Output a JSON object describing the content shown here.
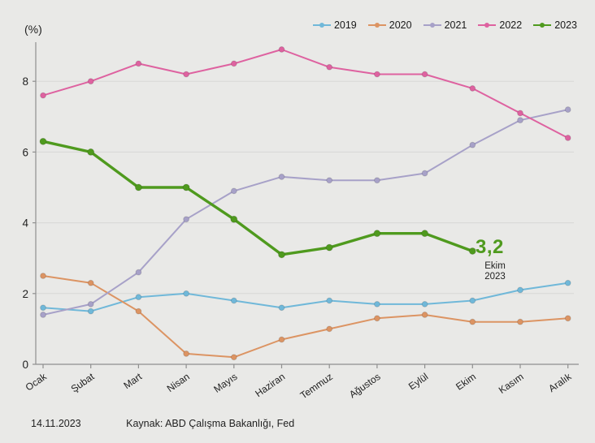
{
  "chart": {
    "unit_label": "(%)",
    "annotation": {
      "value": "3,2",
      "line1": "Ekim",
      "line2": "2023"
    },
    "footer": {
      "date": "14.11.2023",
      "source": "Kaynak: ABD Çalışma Bakanlığı, Fed"
    },
    "colors": {
      "background": "#e9e9e7",
      "grid": "#d7d7d6",
      "axis": "#8f8f8f",
      "text": "#222222",
      "annotation_value": "#4f9a1e"
    }
  },
  "chart_data": {
    "type": "line",
    "title": "",
    "xlabel": "",
    "ylabel": "(%)",
    "categories": [
      "Ocak",
      "Şubat",
      "Mart",
      "Nisan",
      "Mayıs",
      "Haziran",
      "Temmuz",
      "Ağustos",
      "Eylül",
      "Ekim",
      "Kasım",
      "Aralık"
    ],
    "series": [
      {
        "name": "2019",
        "color": "#70b8d9",
        "line_width": 2,
        "values": [
          1.6,
          1.5,
          1.9,
          2.0,
          1.8,
          1.6,
          1.8,
          1.7,
          1.7,
          1.8,
          2.1,
          2.3
        ]
      },
      {
        "name": "2020",
        "color": "#dc9463",
        "line_width": 2,
        "values": [
          2.5,
          2.3,
          1.5,
          0.3,
          0.2,
          0.7,
          1.0,
          1.3,
          1.4,
          1.2,
          1.2,
          1.3
        ]
      },
      {
        "name": "2021",
        "color": "#a7a1c8",
        "line_width": 2,
        "values": [
          1.4,
          1.7,
          2.6,
          4.1,
          4.9,
          5.3,
          5.2,
          5.2,
          5.4,
          6.2,
          6.9,
          7.2
        ]
      },
      {
        "name": "2022",
        "color": "#de62a0",
        "line_width": 2,
        "values": [
          7.6,
          8.0,
          8.5,
          8.2,
          8.5,
          8.9,
          8.4,
          8.2,
          8.2,
          7.8,
          7.1,
          6.4
        ]
      },
      {
        "name": "2023",
        "color": "#4f9a1e",
        "line_width": 3.4,
        "values": [
          6.3,
          6.0,
          5.0,
          5.0,
          4.1,
          3.1,
          3.3,
          3.7,
          3.7,
          3.2
        ]
      }
    ],
    "yticks": [
      0,
      2,
      4,
      6,
      8
    ],
    "ylim": [
      0,
      9.1
    ],
    "grid": true,
    "legend_position": "top-right",
    "highlight": {
      "series": "2023",
      "category": "Ekim",
      "value": 3.2
    }
  }
}
